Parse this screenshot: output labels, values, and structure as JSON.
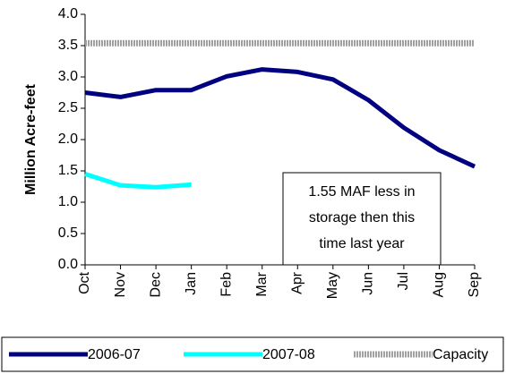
{
  "chart_data": {
    "type": "line",
    "ylabel": "Million Acre-feet",
    "categories": [
      "Oct",
      "Nov",
      "Dec",
      "Jan",
      "Feb",
      "Mar",
      "Apr",
      "May",
      "Jun",
      "Jul",
      "Aug",
      "Sep"
    ],
    "series": [
      {
        "name": "2006-07",
        "color": "#000080",
        "values": [
          2.75,
          2.68,
          2.79,
          2.79,
          3.01,
          3.12,
          3.08,
          2.96,
          2.63,
          2.19,
          1.83,
          1.57
        ]
      },
      {
        "name": "2007-08",
        "color": "#00ffff",
        "values": [
          1.45,
          1.27,
          1.24,
          1.28,
          null,
          null,
          null,
          null,
          null,
          null,
          null,
          null
        ]
      },
      {
        "name": "Capacity",
        "color": "#a0a0a0",
        "values": [
          3.54,
          3.54,
          3.54,
          3.54,
          3.54,
          3.54,
          3.54,
          3.54,
          3.54,
          3.54,
          3.54,
          3.54
        ]
      }
    ],
    "ylim": [
      0,
      4
    ],
    "yticks": [
      {
        "value": 0,
        "label": "0.0"
      },
      0.5,
      {
        "value": 1,
        "label": "1.0"
      },
      1.5,
      {
        "value": 2,
        "label": "2.0"
      },
      2.5,
      {
        "value": 3,
        "label": "3.0"
      },
      3.5,
      {
        "value": 4,
        "label": "4.0"
      }
    ],
    "annotation": [
      "1.55 MAF less in",
      "storage then this",
      "time last year"
    ],
    "legend": "bottom"
  }
}
